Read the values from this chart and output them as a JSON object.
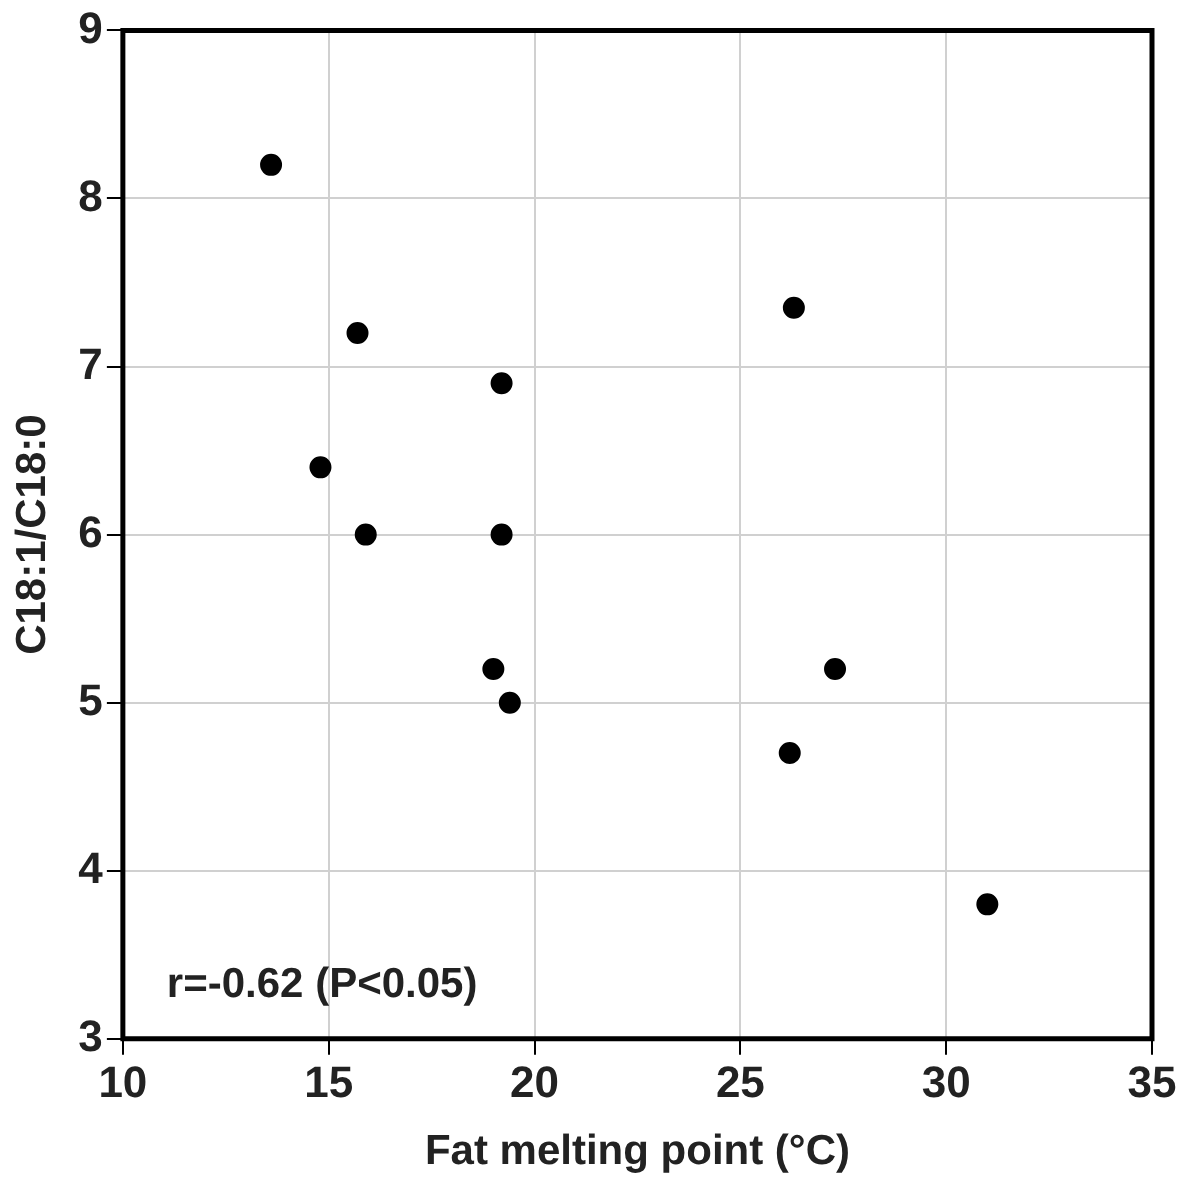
{
  "chart_data": {
    "type": "scatter",
    "xlabel": "Fat melting point (°C)",
    "ylabel": "C18:1/C18:0",
    "annotations": [
      "r=-0.62 (P<0.05)"
    ],
    "series": [
      {
        "color": "#000000",
        "x": [
          13.6,
          15.7,
          14.8,
          15.9,
          19.2,
          19.2,
          19.0,
          19.4,
          26.3,
          27.3,
          26.2,
          31.0
        ],
        "values": [
          8.2,
          7.2,
          6.4,
          6.0,
          6.9,
          6.0,
          5.2,
          5.0,
          7.35,
          5.2,
          4.7,
          3.8
        ]
      }
    ],
    "xlim": [
      10,
      35
    ],
    "xticks": [
      10,
      15,
      20,
      25,
      30,
      35
    ],
    "ylim": [
      3,
      9
    ],
    "yticks": [
      3,
      4,
      5,
      6,
      7,
      8,
      9
    ],
    "grid": true,
    "legend": false,
    "marker": "circle"
  }
}
